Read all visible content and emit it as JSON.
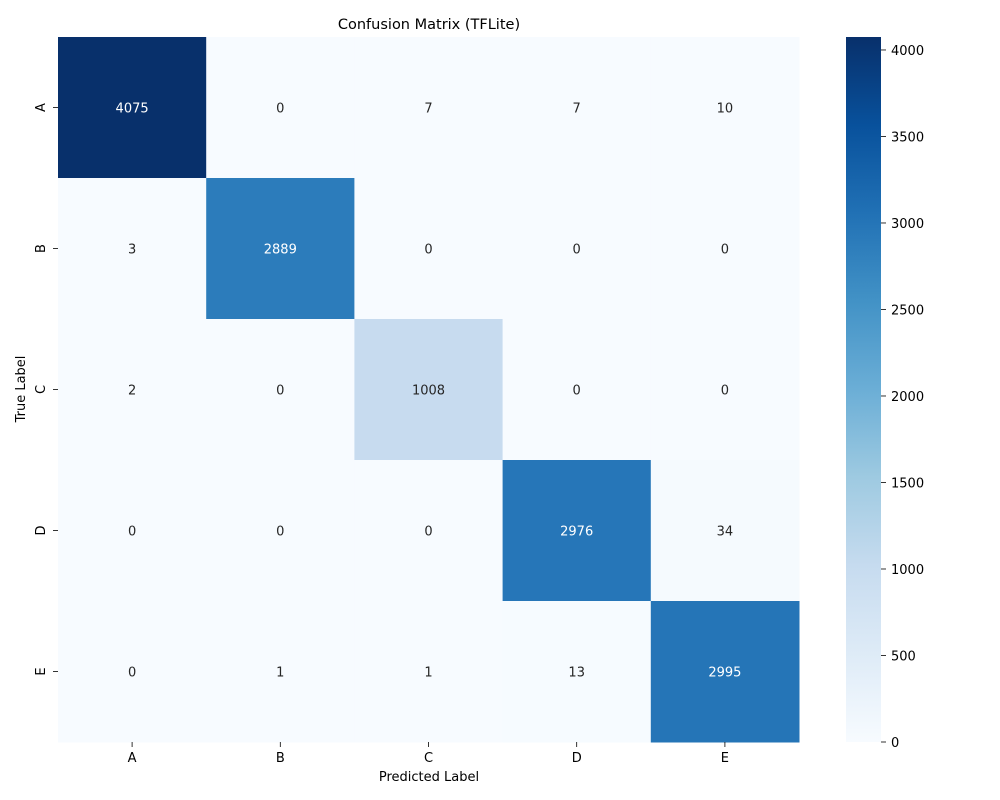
{
  "chart_data": {
    "type": "heatmap",
    "title": "Confusion Matrix (TFLite)",
    "xlabel": "Predicted Label",
    "ylabel": "True Label",
    "x_categories": [
      "A",
      "B",
      "C",
      "D",
      "E"
    ],
    "y_categories": [
      "A",
      "B",
      "C",
      "D",
      "E"
    ],
    "values": [
      [
        4075,
        0,
        7,
        7,
        10
      ],
      [
        3,
        2889,
        0,
        0,
        0
      ],
      [
        2,
        0,
        1008,
        0,
        0
      ],
      [
        0,
        0,
        0,
        2976,
        34
      ],
      [
        0,
        1,
        1,
        13,
        2995
      ]
    ],
    "colorbar": {
      "min": 0,
      "max": 4075,
      "ticks": [
        0,
        500,
        1000,
        1500,
        2000,
        2500,
        3000,
        3500,
        4000
      ],
      "colormap": "Blues"
    },
    "grid": false
  }
}
